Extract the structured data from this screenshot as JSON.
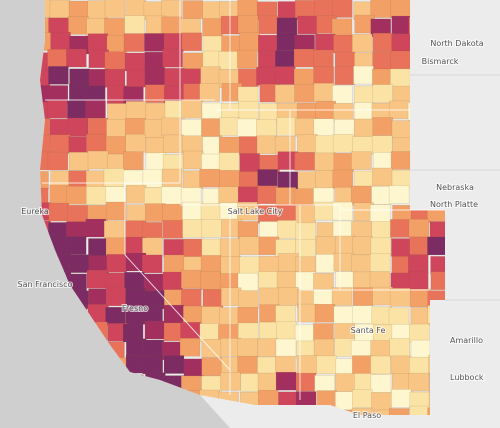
{
  "map": {
    "labels": [
      {
        "text": "North Dakota"
      },
      {
        "text": "Bismarck"
      },
      {
        "text": "Eureka"
      },
      {
        "text": "Nebraska"
      },
      {
        "text": "North Platte"
      },
      {
        "text": "Salt Lake City"
      },
      {
        "text": "San Francisco"
      },
      {
        "text": "Fresno"
      },
      {
        "text": "Santa Fe"
      },
      {
        "text": "Amarillo"
      },
      {
        "text": "Lubbock"
      },
      {
        "text": "El Paso"
      }
    ]
  }
}
